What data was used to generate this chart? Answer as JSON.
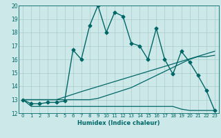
{
  "title": "",
  "xlabel": "Humidex (Indice chaleur)",
  "ylabel": "",
  "xlim": [
    -0.5,
    23.5
  ],
  "ylim": [
    12,
    20
  ],
  "yticks": [
    12,
    13,
    14,
    15,
    16,
    17,
    18,
    19,
    20
  ],
  "xticks": [
    0,
    1,
    2,
    3,
    4,
    5,
    6,
    7,
    8,
    9,
    10,
    11,
    12,
    13,
    14,
    15,
    16,
    17,
    18,
    19,
    20,
    21,
    22,
    23
  ],
  "bg_color": "#cce8e8",
  "grid_color": "#aacccc",
  "line_color": "#006666",
  "series": [
    {
      "x": [
        0,
        1,
        2,
        3,
        4,
        5,
        6,
        7,
        8,
        9,
        10,
        11,
        12,
        13,
        14,
        15,
        16,
        17,
        18,
        19,
        20,
        21,
        22,
        23
      ],
      "y": [
        13.0,
        12.7,
        12.7,
        12.8,
        12.8,
        12.9,
        16.7,
        16.0,
        18.5,
        20.0,
        18.0,
        19.5,
        19.2,
        17.2,
        17.0,
        16.0,
        18.3,
        16.0,
        14.9,
        16.6,
        15.8,
        14.8,
        13.7,
        12.2
      ],
      "marker": "D",
      "markersize": 2.5,
      "linewidth": 1.0
    },
    {
      "x": [
        0,
        3,
        4,
        5,
        6,
        7,
        23
      ],
      "y": [
        13.0,
        13.0,
        13.0,
        13.2,
        13.4,
        13.6,
        16.6
      ],
      "marker": null,
      "markersize": 0,
      "linewidth": 0.9
    },
    {
      "x": [
        0,
        3,
        4,
        5,
        6,
        7,
        8,
        9,
        10,
        11,
        12,
        13,
        14,
        15,
        16,
        17,
        18,
        19,
        20,
        21,
        22,
        23
      ],
      "y": [
        13.0,
        13.0,
        13.0,
        13.0,
        13.0,
        13.0,
        13.0,
        13.1,
        13.3,
        13.5,
        13.7,
        13.9,
        14.2,
        14.5,
        14.8,
        15.1,
        15.4,
        15.7,
        16.0,
        16.2,
        16.2,
        16.3
      ],
      "marker": null,
      "markersize": 0,
      "linewidth": 0.9
    },
    {
      "x": [
        0,
        1,
        2,
        3,
        4,
        5,
        6,
        7,
        8,
        9,
        10,
        11,
        12,
        13,
        14,
        15,
        16,
        17,
        18,
        19,
        20,
        21,
        22,
        23
      ],
      "y": [
        13.0,
        12.5,
        12.5,
        12.5,
        12.5,
        12.5,
        12.5,
        12.5,
        12.5,
        12.5,
        12.5,
        12.5,
        12.5,
        12.5,
        12.5,
        12.5,
        12.5,
        12.5,
        12.5,
        12.3,
        12.2,
        12.2,
        12.2,
        12.2
      ],
      "marker": null,
      "markersize": 0,
      "linewidth": 0.9
    }
  ]
}
